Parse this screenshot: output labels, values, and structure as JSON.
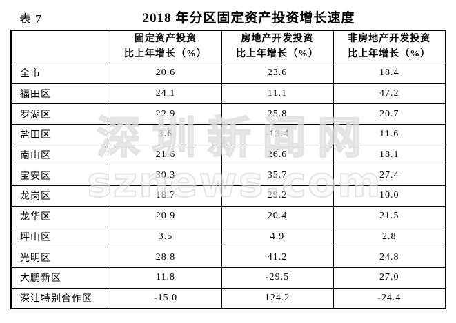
{
  "page": {
    "table_label": "表 7",
    "title": "2018 年分区固定资产投资增长速度"
  },
  "watermark": {
    "line1": "深圳新闻网",
    "line2": "sznews.com"
  },
  "colors": {
    "background": "#ffffff",
    "text": "#000000",
    "border": "#000000",
    "watermark": "#dddddd"
  },
  "chart_data": {
    "type": "table",
    "title": "2018 年分区固定资产投资增长速度",
    "table_label": "表 7",
    "unit": "%",
    "header_lines": [
      {
        "line1": "固定资产投资",
        "line2": "比上年增长（%）"
      },
      {
        "line1": "房地产开发投资",
        "line2": "比上年增长（%）"
      },
      {
        "line1": "非房地产开发投资",
        "line2": "比上年增长（%）"
      }
    ],
    "column_headers": [
      "固定资产投资比上年增长（%）",
      "房地产开发投资比上年增长（%）",
      "非房地产开发投资比上年增长（%）"
    ],
    "rows": [
      {
        "name": "全市",
        "values": [
          20.6,
          23.6,
          18.4
        ]
      },
      {
        "name": "福田区",
        "values": [
          24.1,
          11.1,
          47.2
        ]
      },
      {
        "name": "罗湖区",
        "values": [
          22.9,
          25.8,
          20.7
        ]
      },
      {
        "name": "盐田区",
        "values": [
          3.6,
          -13.4,
          11.6
        ]
      },
      {
        "name": "南山区",
        "values": [
          21.6,
          26.6,
          18.1
        ]
      },
      {
        "name": "宝安区",
        "values": [
          30.3,
          35.7,
          27.4
        ]
      },
      {
        "name": "龙岗区",
        "values": [
          18.7,
          29.2,
          10.0
        ]
      },
      {
        "name": "龙华区",
        "values": [
          20.9,
          20.4,
          21.5
        ]
      },
      {
        "name": "坪山区",
        "values": [
          3.5,
          4.9,
          2.8
        ]
      },
      {
        "name": "光明区",
        "values": [
          28.8,
          41.2,
          24.8
        ]
      },
      {
        "name": "大鹏新区",
        "values": [
          11.8,
          -29.5,
          27.0
        ]
      },
      {
        "name": "深汕特别合作区",
        "values": [
          -15.0,
          124.2,
          -24.4
        ]
      }
    ],
    "value_format": "one_decimal",
    "grid": true,
    "first_column_header": ""
  }
}
